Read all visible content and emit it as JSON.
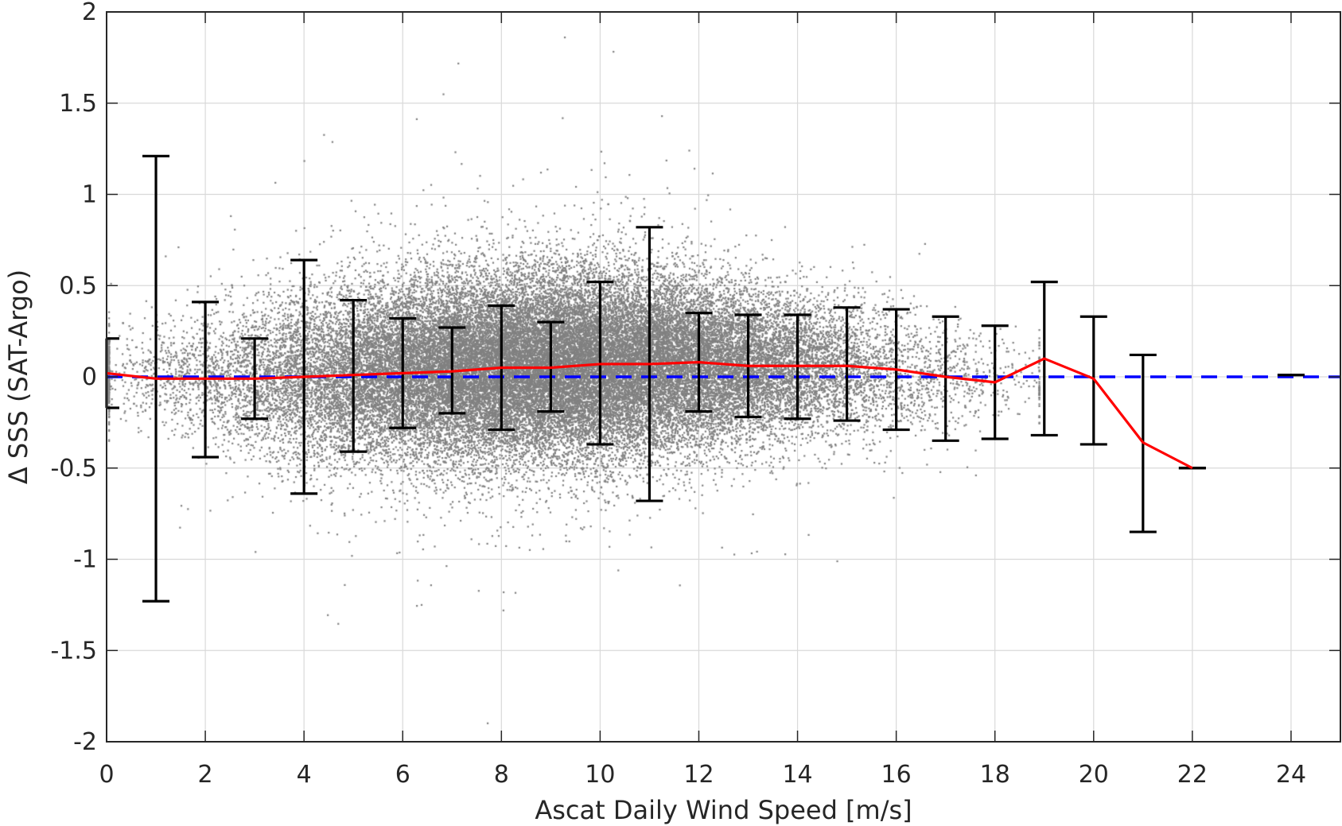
{
  "chart_data": {
    "type": "scatter",
    "title": "",
    "xlabel": "Ascat Daily Wind Speed [m/s]",
    "ylabel": "Δ SSS (SAT-Argo)",
    "xlim": [
      0,
      25
    ],
    "ylim": [
      -2,
      2
    ],
    "xticks": [
      0,
      2,
      4,
      6,
      8,
      10,
      12,
      14,
      16,
      18,
      20,
      22,
      24
    ],
    "yticks": [
      -2,
      -1.5,
      -1,
      -0.5,
      0,
      0.5,
      1,
      1.5,
      2
    ],
    "grid": true,
    "legend": "none",
    "colors": {
      "scatter": "#808080",
      "mean_line": "#ff0000",
      "zero_line": "#0000ff",
      "error_bars": "#000000",
      "grid": "#d9d9d9",
      "axes": "#262626"
    },
    "scatter_description": {
      "center_profile": [
        [
          0.2,
          0.02
        ],
        [
          2,
          0.0
        ],
        [
          4,
          0.0
        ],
        [
          6,
          0.03
        ],
        [
          8,
          0.05
        ],
        [
          10,
          0.07
        ],
        [
          12,
          0.07
        ],
        [
          14,
          0.06
        ],
        [
          16,
          0.04
        ],
        [
          17.5,
          0.0
        ],
        [
          18.5,
          -0.02
        ]
      ],
      "spread_profile": [
        [
          0.2,
          0.13
        ],
        [
          2,
          0.2
        ],
        [
          4,
          0.24
        ],
        [
          6,
          0.25
        ],
        [
          8,
          0.26
        ],
        [
          10,
          0.26
        ],
        [
          12,
          0.23
        ],
        [
          14,
          0.2
        ],
        [
          16,
          0.18
        ],
        [
          17.5,
          0.15
        ],
        [
          18.5,
          0.12
        ]
      ],
      "point_count": 42000
    },
    "mean_line": {
      "x": [
        0,
        1,
        2,
        3,
        4,
        5,
        6,
        7,
        8,
        9,
        10,
        11,
        12,
        13,
        14,
        15,
        16,
        17,
        18,
        19,
        20,
        21,
        22
      ],
      "y": [
        0.02,
        -0.01,
        -0.01,
        -0.01,
        0.0,
        0.01,
        0.02,
        0.03,
        0.05,
        0.05,
        0.07,
        0.07,
        0.08,
        0.06,
        0.06,
        0.06,
        0.04,
        0.0,
        -0.03,
        0.1,
        -0.01,
        -0.36,
        -0.5
      ]
    },
    "zero_line": {
      "y": 0
    },
    "error_bars": [
      {
        "x": 0,
        "lower": -0.17,
        "upper": 0.21
      },
      {
        "x": 1,
        "lower": -1.23,
        "upper": 1.21
      },
      {
        "x": 2,
        "lower": -0.44,
        "upper": 0.41
      },
      {
        "x": 3,
        "lower": -0.23,
        "upper": 0.21
      },
      {
        "x": 4,
        "lower": -0.64,
        "upper": 0.64
      },
      {
        "x": 5,
        "lower": -0.41,
        "upper": 0.42
      },
      {
        "x": 6,
        "lower": -0.28,
        "upper": 0.32
      },
      {
        "x": 7,
        "lower": -0.2,
        "upper": 0.27
      },
      {
        "x": 8,
        "lower": -0.29,
        "upper": 0.39
      },
      {
        "x": 9,
        "lower": -0.19,
        "upper": 0.3
      },
      {
        "x": 10,
        "lower": -0.37,
        "upper": 0.52
      },
      {
        "x": 11,
        "lower": -0.68,
        "upper": 0.82
      },
      {
        "x": 12,
        "lower": -0.19,
        "upper": 0.35
      },
      {
        "x": 13,
        "lower": -0.22,
        "upper": 0.34
      },
      {
        "x": 14,
        "lower": -0.23,
        "upper": 0.34
      },
      {
        "x": 15,
        "lower": -0.24,
        "upper": 0.38
      },
      {
        "x": 16,
        "lower": -0.29,
        "upper": 0.37
      },
      {
        "x": 17,
        "lower": -0.35,
        "upper": 0.33
      },
      {
        "x": 18,
        "lower": -0.34,
        "upper": 0.28
      },
      {
        "x": 19,
        "lower": -0.32,
        "upper": 0.52
      },
      {
        "x": 20,
        "lower": -0.37,
        "upper": 0.33
      },
      {
        "x": 21,
        "lower": -0.85,
        "upper": 0.12
      },
      {
        "x": 22,
        "lower": -0.5,
        "upper": -0.5
      },
      {
        "x": 24,
        "lower": 0.01,
        "upper": 0.01
      }
    ]
  }
}
